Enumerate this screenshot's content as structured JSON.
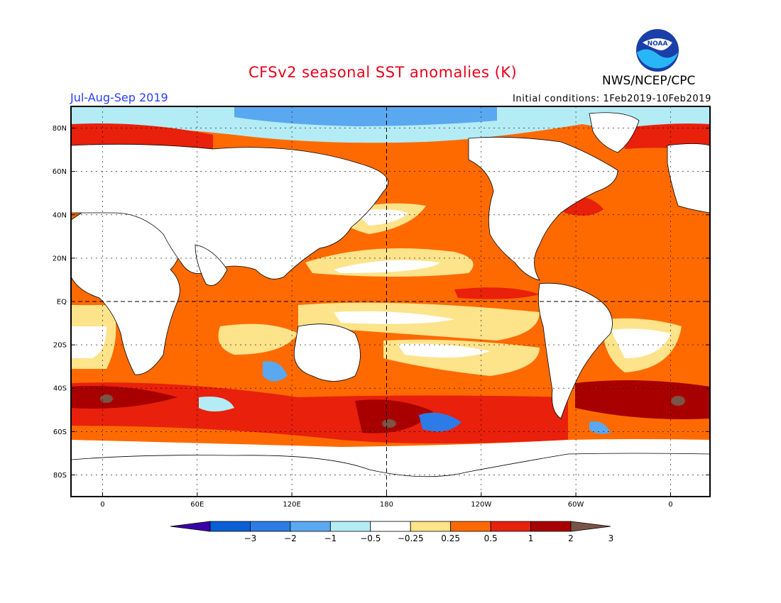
{
  "header": {
    "title": "CFSv2 seasonal SST anomalies (K)",
    "season": "Jul-Aug-Sep 2019",
    "initial_conditions": "Initial conditions: 1Feb2019-10Feb2019",
    "agency": "NWS/NCEP/CPC",
    "logo_text": "NOAA"
  },
  "map": {
    "lat_labels": [
      "80N",
      "60N",
      "40N",
      "20N",
      "EQ",
      "20S",
      "40S",
      "60S",
      "80S"
    ],
    "lat_values": [
      80,
      60,
      40,
      20,
      0,
      -20,
      -40,
      -60,
      -80
    ],
    "lon_labels": [
      "0",
      "60E",
      "120E",
      "180",
      "120W",
      "60W",
      "0"
    ],
    "lon_values": [
      0,
      60,
      120,
      180,
      240,
      300,
      360
    ],
    "lon_range": [
      -20,
      385
    ],
    "lat_range": [
      -90,
      90
    ]
  },
  "colorbar": {
    "levels": [
      "-3",
      "-2",
      "-1",
      "-0.5",
      "-0.25",
      "0.25",
      "0.5",
      "1",
      "2",
      "3"
    ],
    "colors": [
      "#3a00a8",
      "#0a5fd6",
      "#2c7be6",
      "#5aa8f0",
      "#b4ecf5",
      "#ffffff",
      "#fde38a",
      "#ff6a00",
      "#e8200c",
      "#a80000",
      "#7a5446"
    ]
  },
  "legend_anomaly_colors": {
    "warm_light": "#fde38a",
    "warm": "#ff6a00",
    "warm_strong": "#e8200c",
    "warm_extreme": "#a80000",
    "cool_light": "#b4ecf5",
    "cool": "#5aa8f0",
    "cool_strong": "#2c7be6"
  }
}
